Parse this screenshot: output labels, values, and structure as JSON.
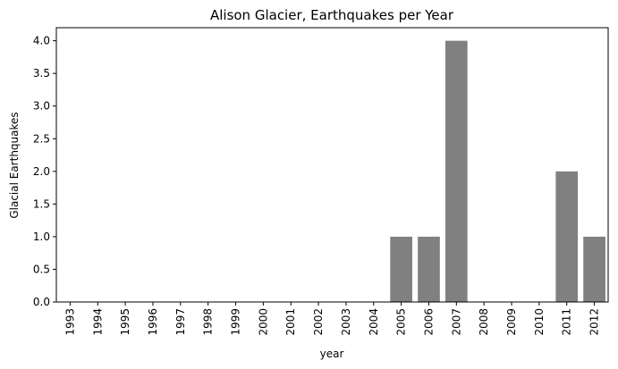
{
  "chart_data": {
    "type": "bar",
    "title": "Alison Glacier, Earthquakes per Year",
    "xlabel": "year",
    "ylabel": "Glacial Earthquakes",
    "categories": [
      "1993",
      "1994",
      "1995",
      "1996",
      "1997",
      "1998",
      "1999",
      "2000",
      "2001",
      "2002",
      "2003",
      "2004",
      "2005",
      "2006",
      "2007",
      "2008",
      "2009",
      "2010",
      "2011",
      "2012"
    ],
    "values": [
      0,
      0,
      0,
      0,
      0,
      0,
      0,
      0,
      0,
      0,
      0,
      0,
      1,
      1,
      4,
      0,
      0,
      0,
      2,
      1
    ],
    "ylim": [
      0,
      4.2
    ],
    "yticks": [
      "0.0",
      "0.5",
      "1.0",
      "1.5",
      "2.0",
      "2.5",
      "3.0",
      "3.5",
      "4.0"
    ],
    "bar_color": "#808080",
    "grid": false,
    "legend": "none"
  }
}
